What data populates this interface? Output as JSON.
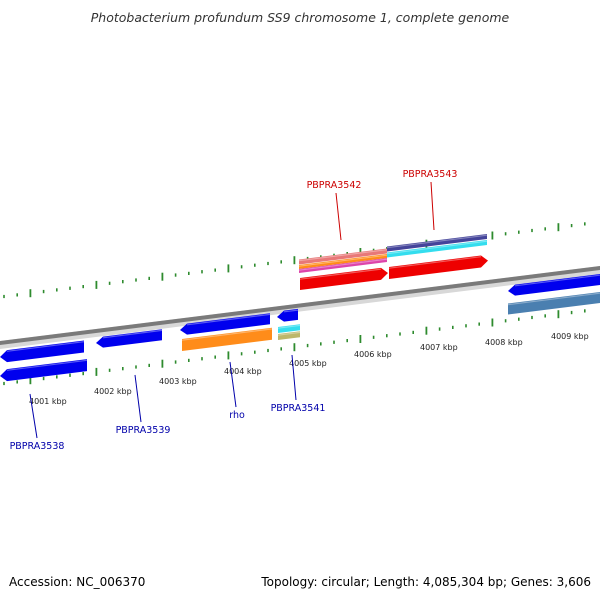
{
  "title": "Photobacterium profundum SS9 chromosome 1, complete genome",
  "footer": {
    "accession": "Accession: NC_006370",
    "summary": "Topology: circular; Length: 4,085,304 bp; Genes: 3,606"
  },
  "colors": {
    "backbone": "#8a8a8a",
    "tick": "#2e8b2e",
    "label_forward": "#cc0000",
    "label_reverse": "#0000aa",
    "gene_blue": "#0000ee",
    "gene_red": "#ee0000",
    "gene_orange": "#ff8c1a",
    "gene_cyan": "#33ddee",
    "gene_khaki": "#bdb76b",
    "gene_steel": "#4a7fb0",
    "gene_purple": "#44449a",
    "gene_pink": "#e87878"
  },
  "kbp_ticks": [
    "4001 kbp",
    "4002 kbp",
    "4003 kbp",
    "4004 kbp",
    "4005 kbp",
    "4006 kbp",
    "4007 kbp",
    "4008 kbp",
    "4009 kbp"
  ],
  "gene_labels": [
    {
      "text": "PBPRA3542",
      "strand": "forward"
    },
    {
      "text": "PBPRA3543",
      "strand": "forward"
    },
    {
      "text": "PBPRA3538",
      "strand": "reverse"
    },
    {
      "text": "PBPRA3539",
      "strand": "reverse"
    },
    {
      "text": "rho",
      "strand": "reverse"
    },
    {
      "text": "PBPRA3541",
      "strand": "reverse"
    }
  ],
  "features": [
    {
      "track": "forward-cds",
      "color": "gene_red",
      "direction": "right"
    },
    {
      "track": "forward-cds",
      "color": "gene_red",
      "direction": "right"
    },
    {
      "track": "forward-cds",
      "color": "gene_blue",
      "direction": "left"
    },
    {
      "track": "forward-cds",
      "color": "gene_steel",
      "direction": "none"
    },
    {
      "track": "reverse-cds",
      "color": "gene_blue",
      "direction": "left"
    },
    {
      "track": "reverse-cds",
      "color": "gene_blue",
      "direction": "left"
    },
    {
      "track": "reverse-cds",
      "color": "gene_blue",
      "direction": "left"
    },
    {
      "track": "reverse-cds",
      "color": "gene_blue",
      "direction": "left"
    },
    {
      "track": "reverse-cds",
      "color": "gene_blue",
      "direction": "left"
    },
    {
      "track": "reverse-cds",
      "color": "gene_orange",
      "direction": "none"
    },
    {
      "track": "reverse-cds",
      "color": "gene_cyan",
      "direction": "none"
    },
    {
      "track": "reverse-cds",
      "color": "gene_khaki",
      "direction": "none"
    }
  ]
}
